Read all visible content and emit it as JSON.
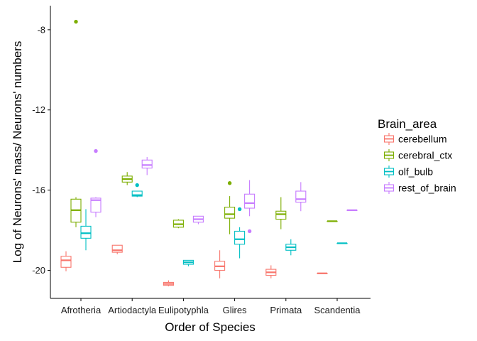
{
  "chart_data": {
    "type": "boxplot",
    "title": "",
    "xlabel": "Order of Species",
    "ylabel": "Log of Neurons' mass/ Neurons' numbers",
    "ylim": [
      -21.4,
      -6.8
    ],
    "yticks": [
      -8,
      -12,
      -16,
      -20
    ],
    "grid": false,
    "legend": {
      "title": "Brain_area",
      "placement": "right"
    },
    "categories": [
      "Afrotheria",
      "Artiodactyla",
      "Eulipotyphla",
      "Glires",
      "Primata",
      "Scandentia"
    ],
    "series": [
      {
        "name": "cerebellum",
        "color": "#F8766D",
        "boxes": [
          {
            "category": "Afrotheria",
            "min": -20.05,
            "q1": -19.85,
            "median": -19.5,
            "q3": -19.3,
            "max": -19.05,
            "outliers": []
          },
          {
            "category": "Artiodactyla",
            "min": -19.2,
            "q1": -19.1,
            "median": -19.0,
            "q3": -18.75,
            "max": -18.75,
            "outliers": []
          },
          {
            "category": "Eulipotyphla",
            "min": -20.8,
            "q1": -20.75,
            "median": -20.68,
            "q3": -20.6,
            "max": -20.5,
            "outliers": []
          },
          {
            "category": "Glires",
            "min": -20.4,
            "q1": -20.0,
            "median": -19.8,
            "q3": -19.55,
            "max": -19.0,
            "outliers": []
          },
          {
            "category": "Primata",
            "min": -20.4,
            "q1": -20.25,
            "median": -20.1,
            "q3": -19.95,
            "max": -19.75,
            "outliers": []
          },
          {
            "category": "Scandentia",
            "min": -20.15,
            "q1": -20.15,
            "median": -20.15,
            "q3": -20.15,
            "max": -20.15,
            "outliers": []
          }
        ]
      },
      {
        "name": "cerebral_ctx",
        "color": "#7CAE00",
        "boxes": [
          {
            "category": "Afrotheria",
            "min": -17.85,
            "q1": -17.6,
            "median": -17.0,
            "q3": -16.45,
            "max": -16.35,
            "outliers": [
              -7.6
            ]
          },
          {
            "category": "Artiodactyla",
            "min": -15.75,
            "q1": -15.6,
            "median": -15.45,
            "q3": -15.3,
            "max": -15.1,
            "outliers": []
          },
          {
            "category": "Eulipotyphla",
            "min": -17.9,
            "q1": -17.85,
            "median": -17.7,
            "q3": -17.5,
            "max": -17.45,
            "outliers": []
          },
          {
            "category": "Glires",
            "min": -18.2,
            "q1": -17.4,
            "median": -17.2,
            "q3": -16.85,
            "max": -16.3,
            "outliers": [
              -15.65
            ]
          },
          {
            "category": "Primata",
            "min": -17.95,
            "q1": -17.45,
            "median": -17.2,
            "q3": -17.05,
            "max": -16.35,
            "outliers": []
          },
          {
            "category": "Scandentia",
            "min": -17.55,
            "q1": -17.55,
            "median": -17.55,
            "q3": -17.55,
            "max": -17.55,
            "outliers": []
          }
        ]
      },
      {
        "name": "olf_bulb",
        "color": "#00BFC4",
        "boxes": [
          {
            "category": "Afrotheria",
            "min": -19.0,
            "q1": -18.4,
            "median": -18.15,
            "q3": -17.8,
            "max": -16.95,
            "outliers": []
          },
          {
            "category": "Artiodactyla",
            "min": -16.35,
            "q1": -16.3,
            "median": -16.25,
            "q3": -16.05,
            "max": -16.05,
            "outliers": [
              -15.75
            ]
          },
          {
            "category": "Eulipotyphla",
            "min": -19.8,
            "q1": -19.7,
            "median": -19.6,
            "q3": -19.5,
            "max": -19.5,
            "outliers": []
          },
          {
            "category": "Glires",
            "min": -19.4,
            "q1": -18.7,
            "median": -18.45,
            "q3": -18.05,
            "max": -17.85,
            "outliers": [
              -16.95
            ]
          },
          {
            "category": "Primata",
            "min": -19.25,
            "q1": -19.0,
            "median": -18.85,
            "q3": -18.7,
            "max": -18.45,
            "outliers": []
          },
          {
            "category": "Scandentia",
            "min": -18.65,
            "q1": -18.65,
            "median": -18.65,
            "q3": -18.65,
            "max": -18.65,
            "outliers": []
          }
        ]
      },
      {
        "name": "rest_of_brain",
        "color": "#C77CFF",
        "boxes": [
          {
            "category": "Afrotheria",
            "min": -17.35,
            "q1": -17.1,
            "median": -16.5,
            "q3": -16.4,
            "max": -16.35,
            "outliers": [
              -14.05
            ]
          },
          {
            "category": "Artiodactyla",
            "min": -15.25,
            "q1": -14.9,
            "median": -14.75,
            "q3": -14.5,
            "max": -14.35,
            "outliers": []
          },
          {
            "category": "Eulipotyphla",
            "min": -17.7,
            "q1": -17.6,
            "median": -17.45,
            "q3": -17.3,
            "max": -17.3,
            "outliers": []
          },
          {
            "category": "Glires",
            "min": -17.3,
            "q1": -16.9,
            "median": -16.65,
            "q3": -16.2,
            "max": -15.5,
            "outliers": [
              -18.05
            ]
          },
          {
            "category": "Primata",
            "min": -17.05,
            "q1": -16.6,
            "median": -16.45,
            "q3": -16.05,
            "max": -15.6,
            "outliers": []
          },
          {
            "category": "Scandentia",
            "min": -17.0,
            "q1": -17.0,
            "median": -17.0,
            "q3": -17.0,
            "max": -17.0,
            "outliers": []
          }
        ]
      }
    ]
  }
}
